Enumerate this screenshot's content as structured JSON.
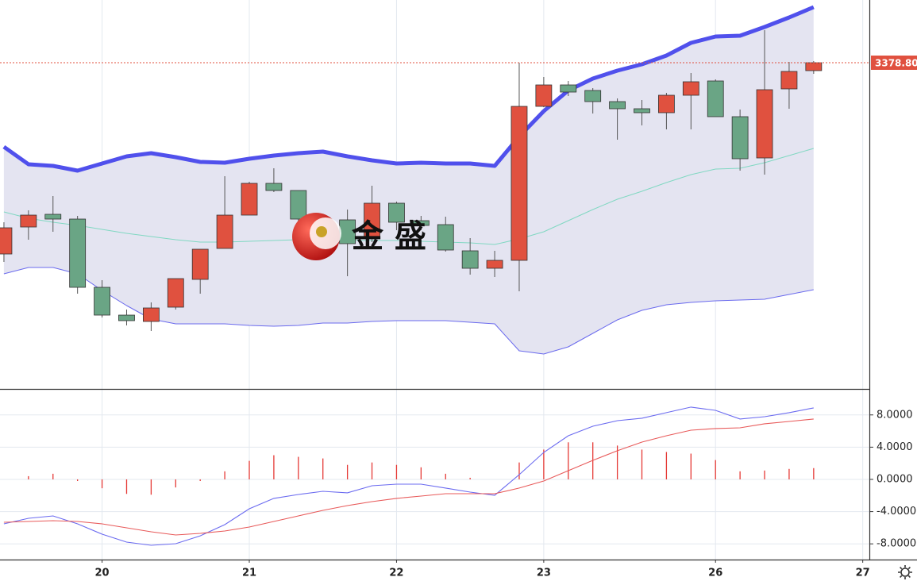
{
  "chart_data": [
    {
      "type": "candlestick",
      "x": [
        0,
        1,
        2,
        3,
        4,
        5,
        6,
        7,
        8,
        9,
        10,
        11,
        12,
        13,
        14,
        15,
        16,
        17,
        18,
        19,
        20,
        21,
        22,
        23,
        24,
        25,
        26,
        27,
        28,
        29,
        30,
        31,
        32,
        33
      ],
      "xlim": [
        -0.16,
        35.27
      ],
      "xticks": [
        {
          "value": 4,
          "label": "20"
        },
        {
          "value": 10,
          "label": "21"
        },
        {
          "value": 16,
          "label": "22"
        },
        {
          "value": 22,
          "label": "23"
        },
        {
          "value": 29,
          "label": "26"
        },
        {
          "value": 35,
          "label": "27"
        }
      ],
      "ylim": [
        3296.6,
        3394.6
      ],
      "open": [
        3330.6,
        3337.4,
        3340.6,
        3339.4,
        3322.2,
        3315.2,
        3313.6,
        3317.2,
        3324.2,
        3332.0,
        3340.4,
        3348.4,
        3346.6,
        3339.4,
        3339.2,
        3334.6,
        3343.4,
        3339.0,
        3338.0,
        3331.4,
        3327.0,
        3329.0,
        3367.8,
        3373.2,
        3371.8,
        3369.0,
        3367.2,
        3366.2,
        3370.6,
        3374.2,
        3365.2,
        3354.8,
        3372.2,
        3376.8
      ],
      "high": [
        3338.6,
        3341.6,
        3345.2,
        3340.2,
        3324.0,
        3316.6,
        3318.4,
        3324.4,
        3331.8,
        3350.2,
        3348.8,
        3352.2,
        3346.6,
        3340.6,
        3341.8,
        3347.8,
        3343.8,
        3340.2,
        3340.0,
        3334.6,
        3331.4,
        3378.8,
        3375.2,
        3374.2,
        3372.4,
        3369.8,
        3369.4,
        3371.2,
        3376.2,
        3374.6,
        3367.0,
        3387.0,
        3379.0,
        3379.2
      ],
      "low": [
        3328.6,
        3334.2,
        3336.2,
        3320.6,
        3314.6,
        3312.6,
        3311.2,
        3316.6,
        3320.6,
        3332.0,
        3340.4,
        3346.2,
        3338.6,
        3333.6,
        3325.0,
        3333.6,
        3336.6,
        3336.6,
        3331.2,
        3325.4,
        3324.8,
        3321.2,
        3367.6,
        3370.4,
        3366.0,
        3359.4,
        3363.0,
        3362.0,
        3362.0,
        3365.2,
        3351.6,
        3350.6,
        3367.2,
        3376.0
      ],
      "close": [
        3337.2,
        3340.4,
        3339.4,
        3322.2,
        3315.2,
        3313.8,
        3317.0,
        3324.4,
        3331.8,
        3340.4,
        3348.4,
        3346.6,
        3339.4,
        3335.0,
        3333.2,
        3343.4,
        3338.6,
        3337.8,
        3331.6,
        3327.0,
        3329.0,
        3367.8,
        3373.2,
        3371.4,
        3369.0,
        3367.2,
        3366.2,
        3370.6,
        3374.0,
        3365.2,
        3354.6,
        3372.0,
        3376.6,
        3378.8
      ],
      "up_color": "#e0513f",
      "down_color": "#6aa585",
      "band_fill": "#e4e4f1",
      "bands": [
        {
          "color": "#5050ec",
          "values": [
            3357.6,
            3353.2,
            3352.8,
            3351.6,
            3353.4,
            3355.2,
            3356.0,
            3355.0,
            3353.8,
            3353.6,
            3354.6,
            3355.4,
            3356.0,
            3356.4,
            3355.2,
            3354.2,
            3353.4,
            3353.6,
            3353.4,
            3353.4,
            3352.8,
            3360.2,
            3366.6,
            3371.8,
            3374.8,
            3376.8,
            3378.4,
            3380.6,
            3383.8,
            3385.4,
            3385.6,
            3387.8,
            3390.2,
            3392.8
          ]
        },
        {
          "color": "#80d8c2",
          "values": [
            3341.2,
            3339.6,
            3338.6,
            3337.8,
            3336.8,
            3335.8,
            3335.0,
            3334.2,
            3333.6,
            3333.6,
            3333.8,
            3334.0,
            3334.2,
            3334.0,
            3334.0,
            3334.0,
            3334.0,
            3333.8,
            3333.6,
            3333.4,
            3333.0,
            3334.4,
            3336.2,
            3339.0,
            3341.8,
            3344.4,
            3346.4,
            3348.6,
            3350.6,
            3352.0,
            3352.2,
            3353.6,
            3355.4,
            3357.2
          ]
        },
        {
          "color": "#6a6aee",
          "values": [
            3325.6,
            3327.2,
            3327.2,
            3325.6,
            3321.4,
            3317.6,
            3314.2,
            3313.0,
            3313.0,
            3313.0,
            3312.6,
            3312.4,
            3312.6,
            3313.2,
            3313.2,
            3313.6,
            3313.8,
            3313.8,
            3313.8,
            3313.4,
            3313.0,
            3306.2,
            3305.4,
            3307.2,
            3310.6,
            3314.0,
            3316.4,
            3317.8,
            3318.4,
            3318.8,
            3319.0,
            3319.2,
            3320.4,
            3321.6
          ]
        }
      ],
      "last_price": 3378.8,
      "last_price_label": "3378.80",
      "watermark": "金 盛"
    },
    {
      "type": "macd",
      "ylim": [
        -9.95,
        11.03
      ],
      "yticks": [
        {
          "value": 8,
          "label": "8.0000"
        },
        {
          "value": 4,
          "label": "4.0000"
        },
        {
          "value": 0,
          "label": "0.0000"
        },
        {
          "value": -4,
          "label": "-4.0000"
        },
        {
          "value": -8,
          "label": "-8.0000"
        }
      ],
      "grid": true,
      "histogram_color": "#e53935",
      "histogram": [
        0.0,
        0.4,
        0.7,
        -0.2,
        -1.1,
        -1.8,
        -1.9,
        -1.0,
        -0.2,
        1.0,
        2.3,
        3.0,
        2.8,
        2.6,
        1.8,
        2.1,
        1.8,
        1.5,
        0.7,
        0.2,
        0.0,
        2.1,
        3.7,
        4.6,
        4.6,
        4.2,
        3.7,
        3.4,
        3.2,
        2.4,
        1.0,
        1.1,
        1.3,
        1.4
      ],
      "series": [
        {
          "color": "#6b6bf0",
          "values": [
            -5.52,
            -4.83,
            -4.53,
            -5.52,
            -6.8,
            -7.78,
            -8.18,
            -7.98,
            -7.0,
            -5.62,
            -3.65,
            -2.36,
            -1.87,
            -1.48,
            -1.67,
            -0.79,
            -0.59,
            -0.59,
            -1.08,
            -1.58,
            -1.97,
            0.59,
            3.35,
            5.42,
            6.6,
            7.29,
            7.59,
            8.28,
            8.97,
            8.57,
            7.49,
            7.78,
            8.28,
            8.87
          ]
        },
        {
          "color": "#e85a5a",
          "values": [
            -5.32,
            -5.22,
            -5.12,
            -5.22,
            -5.52,
            -6.01,
            -6.5,
            -6.9,
            -6.7,
            -6.4,
            -5.91,
            -5.22,
            -4.53,
            -3.84,
            -3.25,
            -2.76,
            -2.36,
            -2.07,
            -1.77,
            -1.77,
            -1.77,
            -1.08,
            -0.2,
            1.08,
            2.36,
            3.55,
            4.63,
            5.42,
            6.11,
            6.31,
            6.4,
            6.9,
            7.19,
            7.49
          ]
        }
      ]
    }
  ]
}
